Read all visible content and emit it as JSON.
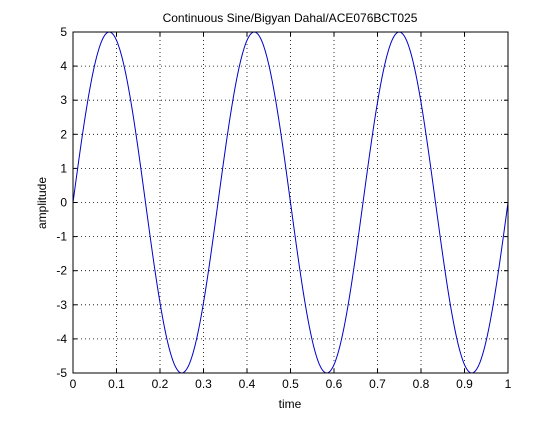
{
  "chart_data": {
    "type": "line",
    "title": "Continuous Sine/Bigyan Dahal/ACE076BCT025",
    "xlabel": "time",
    "ylabel": "amplitude",
    "xlim": [
      0,
      1
    ],
    "ylim": [
      -5,
      5
    ],
    "xticks": [
      "0",
      "0.1",
      "0.2",
      "0.3",
      "0.4",
      "0.5",
      "0.6",
      "0.7",
      "0.8",
      "0.9",
      "1"
    ],
    "yticks": [
      "5",
      "4",
      "3",
      "2",
      "1",
      "0",
      "-1",
      "-2",
      "-3",
      "-4",
      "-5"
    ],
    "grid": "on",
    "series": [
      {
        "amplitude": 5,
        "frequency": 3,
        "x": [
          0,
          0.0833,
          0.25,
          0.4167,
          0.5833,
          0.75,
          0.9167,
          1
        ],
        "y": [
          0,
          5,
          -5,
          5,
          -5,
          5,
          -5,
          0
        ],
        "color": "#0000cc"
      }
    ]
  }
}
